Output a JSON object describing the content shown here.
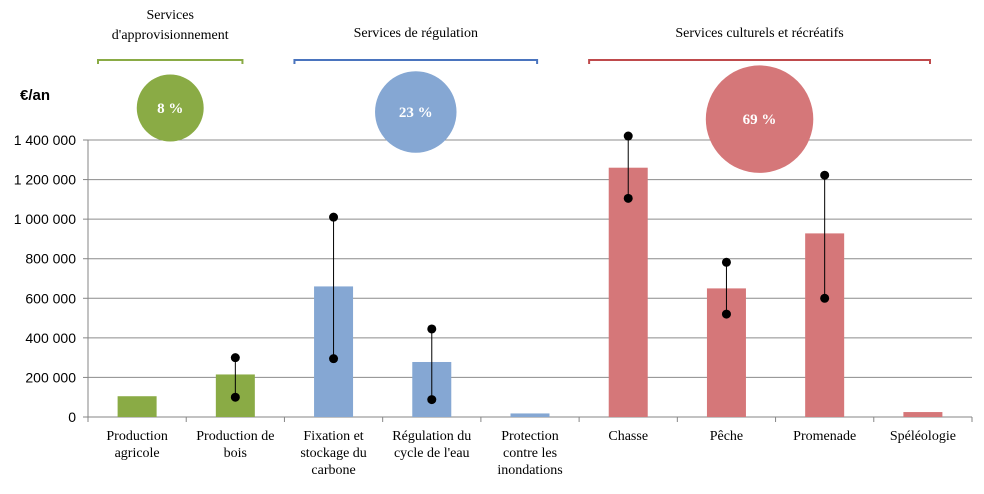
{
  "chart_data": {
    "type": "bar",
    "ylabel": "€/an",
    "ylim": [
      0,
      1400000
    ],
    "yticks": [
      0,
      200000,
      400000,
      600000,
      800000,
      1000000,
      1200000,
      1400000
    ],
    "ytick_labels": [
      "0",
      "200 000",
      "400 000",
      "600 000",
      "800 000",
      "1 000 000",
      "1 200 000",
      "1 400 000"
    ],
    "grid": true,
    "categories": [
      [
        "Production",
        "agricole"
      ],
      [
        "Production de",
        "bois"
      ],
      [
        "Fixation et",
        "stockage du",
        "carbone"
      ],
      [
        "Régulation du",
        "cycle de l'eau"
      ],
      [
        "Protection",
        "contre les",
        "inondations"
      ],
      [
        "Chasse"
      ],
      [
        "Pêche"
      ],
      [
        "Promenade"
      ],
      [
        "Spéléologie"
      ]
    ],
    "values": [
      105000,
      215000,
      660000,
      278000,
      18000,
      1260000,
      650000,
      928000,
      25000
    ],
    "range_low": [
      null,
      100000,
      295000,
      88000,
      null,
      1105000,
      520000,
      600000,
      null
    ],
    "range_high": [
      null,
      300000,
      1010000,
      445000,
      null,
      1420000,
      782000,
      1222000,
      null
    ],
    "group_of_bar": [
      0,
      0,
      1,
      1,
      1,
      2,
      2,
      2,
      2
    ],
    "groups": [
      {
        "label": [
          "Services",
          "d'approvisionnement"
        ],
        "share": 8,
        "share_label": "8 %",
        "color": "#8AAB45"
      },
      {
        "label": [
          "Services de régulation"
        ],
        "share": 23,
        "share_label": "23 %",
        "color": "#85A7D3"
      },
      {
        "label": [
          "Services culturels et récréatifs"
        ],
        "share": 69,
        "share_label": "69 %",
        "color": "#D57779"
      }
    ],
    "bracket_colors": [
      "#8AAB45",
      "#4A74BE",
      "#BF4A4C"
    ],
    "bar_colors": [
      "#8AAB45",
      "#85A7D3",
      "#D57779"
    ]
  }
}
